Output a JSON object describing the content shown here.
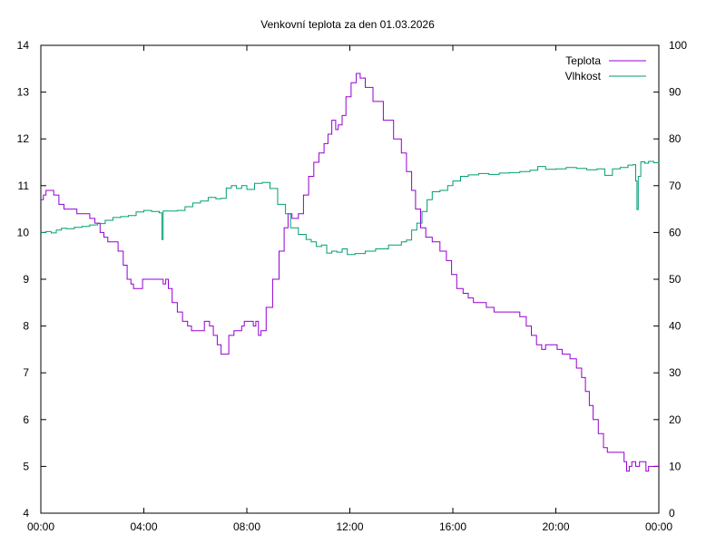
{
  "chart_data": {
    "type": "line",
    "title": "Venkovní teplota za den 01.03.2026",
    "xlabel": "",
    "ylabel": "",
    "y2label": "",
    "x_ticks": [
      "00:00",
      "04:00",
      "08:00",
      "12:00",
      "16:00",
      "20:00",
      "00:00"
    ],
    "xlim": [
      0,
      24
    ],
    "ylim": [
      4,
      14
    ],
    "y_ticks": [
      4,
      5,
      6,
      7,
      8,
      9,
      10,
      11,
      12,
      13,
      14
    ],
    "y2lim": [
      0,
      100
    ],
    "y2_ticks": [
      0,
      10,
      20,
      30,
      40,
      50,
      60,
      70,
      80,
      90,
      100
    ],
    "grid": false,
    "legend_position": "top-right",
    "series": [
      {
        "name": "Teplota",
        "axis": "left",
        "color": "#9400d3",
        "points": [
          [
            0.0,
            10.7
          ],
          [
            0.1,
            10.8
          ],
          [
            0.2,
            10.9
          ],
          [
            0.35,
            10.9
          ],
          [
            0.5,
            10.8
          ],
          [
            0.7,
            10.6
          ],
          [
            0.9,
            10.5
          ],
          [
            1.2,
            10.5
          ],
          [
            1.4,
            10.4
          ],
          [
            1.7,
            10.4
          ],
          [
            1.9,
            10.3
          ],
          [
            2.1,
            10.2
          ],
          [
            2.3,
            10.0
          ],
          [
            2.45,
            9.9
          ],
          [
            2.6,
            9.8
          ],
          [
            2.8,
            9.8
          ],
          [
            3.0,
            9.6
          ],
          [
            3.2,
            9.3
          ],
          [
            3.35,
            9.0
          ],
          [
            3.5,
            8.9
          ],
          [
            3.6,
            8.8
          ],
          [
            3.85,
            8.8
          ],
          [
            3.95,
            9.0
          ],
          [
            4.3,
            9.0
          ],
          [
            4.65,
            9.0
          ],
          [
            4.75,
            8.9
          ],
          [
            4.85,
            9.0
          ],
          [
            4.95,
            8.8
          ],
          [
            5.1,
            8.5
          ],
          [
            5.3,
            8.3
          ],
          [
            5.5,
            8.1
          ],
          [
            5.7,
            8.0
          ],
          [
            5.85,
            7.9
          ],
          [
            6.2,
            7.9
          ],
          [
            6.35,
            8.1
          ],
          [
            6.55,
            8.0
          ],
          [
            6.7,
            7.8
          ],
          [
            6.85,
            7.6
          ],
          [
            7.0,
            7.4
          ],
          [
            7.15,
            7.4
          ],
          [
            7.3,
            7.8
          ],
          [
            7.5,
            7.9
          ],
          [
            7.7,
            7.9
          ],
          [
            7.8,
            8.0
          ],
          [
            7.9,
            8.1
          ],
          [
            8.1,
            8.1
          ],
          [
            8.25,
            8.0
          ],
          [
            8.35,
            8.1
          ],
          [
            8.45,
            7.8
          ],
          [
            8.55,
            7.9
          ],
          [
            8.75,
            8.4
          ],
          [
            9.0,
            9.0
          ],
          [
            9.25,
            9.6
          ],
          [
            9.45,
            10.1
          ],
          [
            9.6,
            10.4
          ],
          [
            9.75,
            10.3
          ],
          [
            10.0,
            10.4
          ],
          [
            10.2,
            10.8
          ],
          [
            10.4,
            11.2
          ],
          [
            10.6,
            11.5
          ],
          [
            10.8,
            11.7
          ],
          [
            11.0,
            11.9
          ],
          [
            11.15,
            12.1
          ],
          [
            11.3,
            12.4
          ],
          [
            11.45,
            12.2
          ],
          [
            11.55,
            12.3
          ],
          [
            11.7,
            12.5
          ],
          [
            11.85,
            12.9
          ],
          [
            12.05,
            13.2
          ],
          [
            12.25,
            13.4
          ],
          [
            12.4,
            13.3
          ],
          [
            12.6,
            13.1
          ],
          [
            12.9,
            12.8
          ],
          [
            13.3,
            12.4
          ],
          [
            13.7,
            12.0
          ],
          [
            14.0,
            11.7
          ],
          [
            14.2,
            11.3
          ],
          [
            14.4,
            10.9
          ],
          [
            14.55,
            10.5
          ],
          [
            14.75,
            10.1
          ],
          [
            14.95,
            9.9
          ],
          [
            15.2,
            9.8
          ],
          [
            15.5,
            9.6
          ],
          [
            15.75,
            9.4
          ],
          [
            15.95,
            9.1
          ],
          [
            16.15,
            8.8
          ],
          [
            16.4,
            8.7
          ],
          [
            16.6,
            8.6
          ],
          [
            16.8,
            8.5
          ],
          [
            17.0,
            8.5
          ],
          [
            17.3,
            8.4
          ],
          [
            17.6,
            8.3
          ],
          [
            17.9,
            8.3
          ],
          [
            18.3,
            8.3
          ],
          [
            18.6,
            8.2
          ],
          [
            18.85,
            8.0
          ],
          [
            19.05,
            7.8
          ],
          [
            19.25,
            7.6
          ],
          [
            19.45,
            7.5
          ],
          [
            19.6,
            7.6
          ],
          [
            19.9,
            7.6
          ],
          [
            20.05,
            7.5
          ],
          [
            20.25,
            7.4
          ],
          [
            20.55,
            7.3
          ],
          [
            20.8,
            7.1
          ],
          [
            21.0,
            6.9
          ],
          [
            21.15,
            6.6
          ],
          [
            21.3,
            6.3
          ],
          [
            21.45,
            6.0
          ],
          [
            21.65,
            5.7
          ],
          [
            21.85,
            5.4
          ],
          [
            22.0,
            5.3
          ],
          [
            22.5,
            5.3
          ],
          [
            22.65,
            5.1
          ],
          [
            22.75,
            4.9
          ],
          [
            22.85,
            5.0
          ],
          [
            22.95,
            5.1
          ],
          [
            23.1,
            5.0
          ],
          [
            23.25,
            5.1
          ],
          [
            23.4,
            5.1
          ],
          [
            23.5,
            4.9
          ],
          [
            23.6,
            5.0
          ],
          [
            24.0,
            5.0
          ]
        ]
      },
      {
        "name": "Vlhkost",
        "axis": "right",
        "color": "#009e73",
        "points": [
          [
            0.0,
            60.0
          ],
          [
            0.2,
            60.2
          ],
          [
            0.4,
            59.9
          ],
          [
            0.6,
            60.5
          ],
          [
            0.8,
            60.9
          ],
          [
            1.0,
            60.8
          ],
          [
            1.3,
            61.1
          ],
          [
            1.6,
            61.3
          ],
          [
            1.9,
            61.6
          ],
          [
            2.2,
            61.9
          ],
          [
            2.5,
            62.6
          ],
          [
            2.8,
            63.2
          ],
          [
            3.1,
            63.4
          ],
          [
            3.4,
            63.6
          ],
          [
            3.7,
            64.4
          ],
          [
            4.0,
            64.7
          ],
          [
            4.3,
            64.5
          ],
          [
            4.6,
            64.2
          ],
          [
            4.7,
            58.5
          ],
          [
            4.75,
            64.6
          ],
          [
            5.0,
            64.6
          ],
          [
            5.3,
            64.7
          ],
          [
            5.6,
            65.5
          ],
          [
            5.9,
            66.3
          ],
          [
            6.2,
            66.7
          ],
          [
            6.5,
            67.5
          ],
          [
            6.8,
            67.2
          ],
          [
            7.0,
            67.3
          ],
          [
            7.2,
            69.5
          ],
          [
            7.4,
            70.0
          ],
          [
            7.6,
            69.4
          ],
          [
            7.8,
            70.0
          ],
          [
            8.0,
            69.2
          ],
          [
            8.3,
            70.5
          ],
          [
            8.6,
            70.7
          ],
          [
            8.9,
            69.4
          ],
          [
            9.2,
            66.0
          ],
          [
            9.5,
            64.0
          ],
          [
            9.7,
            61.0
          ],
          [
            10.0,
            59.6
          ],
          [
            10.3,
            58.5
          ],
          [
            10.5,
            58.0
          ],
          [
            10.7,
            57.0
          ],
          [
            10.9,
            57.3
          ],
          [
            11.1,
            55.6
          ],
          [
            11.3,
            56.0
          ],
          [
            11.5,
            55.8
          ],
          [
            11.7,
            56.5
          ],
          [
            11.9,
            55.3
          ],
          [
            12.2,
            55.5
          ],
          [
            12.6,
            56.0
          ],
          [
            13.0,
            56.5
          ],
          [
            13.5,
            57.3
          ],
          [
            14.0,
            58.0
          ],
          [
            14.2,
            58.4
          ],
          [
            14.4,
            60.5
          ],
          [
            14.6,
            62.0
          ],
          [
            14.8,
            64.5
          ],
          [
            15.0,
            67.0
          ],
          [
            15.2,
            68.7
          ],
          [
            15.5,
            69.0
          ],
          [
            15.8,
            70.0
          ],
          [
            16.0,
            71.0
          ],
          [
            16.3,
            72.0
          ],
          [
            16.6,
            72.3
          ],
          [
            17.0,
            72.6
          ],
          [
            17.4,
            72.4
          ],
          [
            17.8,
            72.7
          ],
          [
            18.2,
            72.8
          ],
          [
            18.6,
            73.0
          ],
          [
            19.0,
            73.3
          ],
          [
            19.3,
            74.1
          ],
          [
            19.6,
            73.5
          ],
          [
            20.0,
            73.6
          ],
          [
            20.4,
            73.9
          ],
          [
            20.8,
            73.7
          ],
          [
            21.2,
            73.4
          ],
          [
            21.6,
            73.6
          ],
          [
            21.9,
            72.2
          ],
          [
            22.2,
            73.6
          ],
          [
            22.5,
            73.9
          ],
          [
            22.8,
            74.4
          ],
          [
            23.0,
            74.5
          ],
          [
            23.1,
            71.0
          ],
          [
            23.15,
            64.9
          ],
          [
            23.2,
            72.0
          ],
          [
            23.3,
            75.1
          ],
          [
            23.45,
            74.8
          ],
          [
            23.6,
            75.2
          ],
          [
            23.8,
            74.9
          ],
          [
            24.0,
            75.0
          ]
        ]
      }
    ]
  }
}
